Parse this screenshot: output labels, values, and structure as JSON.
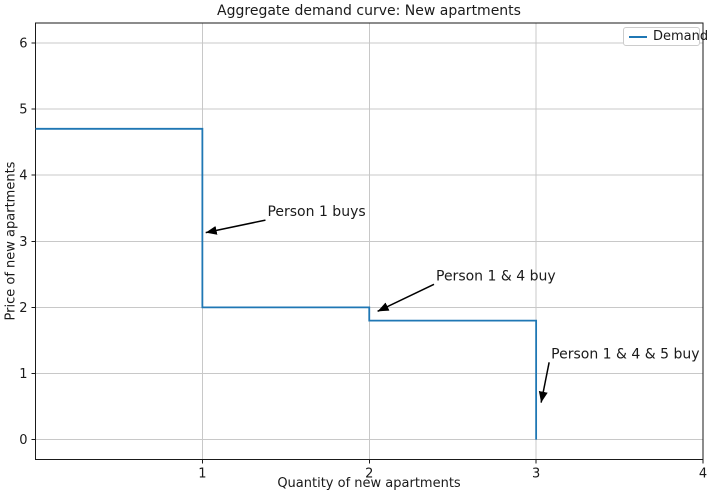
{
  "chart_data": {
    "type": "line",
    "step": "post",
    "title": "Aggregate demand curve: New apartments",
    "xlabel": "Quantity of new apartments",
    "ylabel": "Price of new apartments",
    "xlim": [
      0,
      4
    ],
    "ylim": [
      -0.3,
      6.3
    ],
    "xticks": [
      1,
      2,
      3,
      4
    ],
    "yticks": [
      0,
      1,
      2,
      3,
      4,
      5,
      6
    ],
    "grid": true,
    "legend": {
      "position": "upper right",
      "label": "Demand"
    },
    "series": [
      {
        "name": "Demand",
        "color": "#1f77b4",
        "x": [
          0,
          1,
          2,
          3
        ],
        "y": [
          4.7,
          2.0,
          1.8,
          0.0
        ]
      }
    ],
    "annotations": [
      {
        "text": "Person 1 buys",
        "xy": [
          1.02,
          3.13
        ],
        "xytext": [
          1.39,
          3.38
        ]
      },
      {
        "text": "Person 1 & 4 buy",
        "xy": [
          2.05,
          1.94
        ],
        "xytext": [
          2.4,
          2.41
        ]
      },
      {
        "text": "Person 1 & 4 & 5 buy",
        "xy": [
          3.03,
          0.56
        ],
        "xytext": [
          3.09,
          1.23
        ]
      }
    ]
  },
  "colors": {
    "line": "#1f77b4",
    "grid": "#c8c8c8",
    "spine": "#1a1a1a",
    "text": "#1a1a1a",
    "arrow": "#000000",
    "background": "#ffffff",
    "legend_border": "#cccccc"
  }
}
